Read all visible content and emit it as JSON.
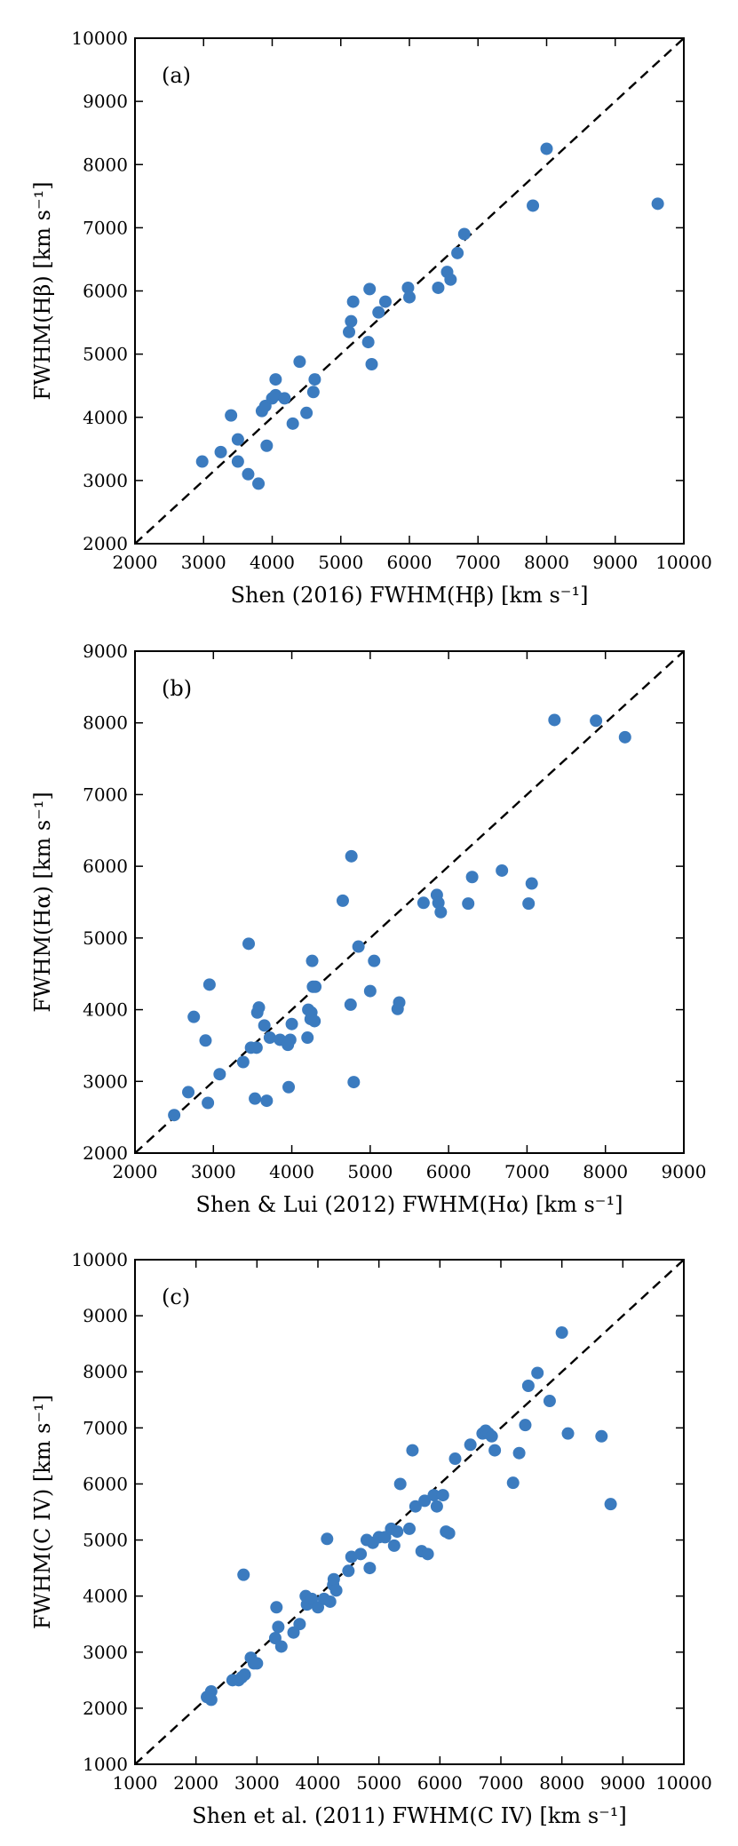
{
  "chart_data": [
    {
      "type": "scatter",
      "panel_label": "(a)",
      "xlabel": "Shen (2016) FWHM(Hβ) [km s⁻¹]",
      "ylabel": "FWHM(Hβ) [km s⁻¹]",
      "xlim": [
        2000,
        10000
      ],
      "ylim": [
        2000,
        10000
      ],
      "xticks": [
        2000,
        3000,
        4000,
        5000,
        6000,
        7000,
        8000,
        9000,
        10000
      ],
      "yticks": [
        2000,
        3000,
        4000,
        5000,
        6000,
        7000,
        8000,
        9000,
        10000
      ],
      "reference_line": "y = x (dashed)",
      "marker_color": "#3b7bbf",
      "x": [
        2980,
        3250,
        3400,
        3500,
        3500,
        3650,
        3800,
        3850,
        3900,
        3920,
        4000,
        4050,
        4050,
        4180,
        4300,
        4400,
        4500,
        4600,
        4620,
        5120,
        5150,
        5180,
        5400,
        5420,
        5450,
        5550,
        5650,
        5980,
        6000,
        6420,
        6550,
        6600,
        6700,
        6800,
        7800,
        8000,
        9620
      ],
      "y": [
        3300,
        3450,
        4030,
        3300,
        3650,
        3100,
        2950,
        4100,
        4180,
        3550,
        4300,
        4350,
        4600,
        4300,
        3900,
        4880,
        4070,
        4400,
        4600,
        5350,
        5520,
        5830,
        5190,
        6030,
        4840,
        5660,
        5830,
        6050,
        5900,
        6050,
        6300,
        6180,
        6600,
        6900,
        7350,
        8250,
        7380
      ]
    },
    {
      "type": "scatter",
      "panel_label": "(b)",
      "xlabel": "Shen & Lui (2012) FWHM(Hα) [km s⁻¹]",
      "ylabel": "FWHM(Hα) [km s⁻¹]",
      "xlim": [
        2000,
        9000
      ],
      "ylim": [
        2000,
        9000
      ],
      "xticks": [
        2000,
        3000,
        4000,
        5000,
        6000,
        7000,
        8000,
        9000
      ],
      "yticks": [
        2000,
        3000,
        4000,
        5000,
        6000,
        7000,
        8000,
        9000
      ],
      "reference_line": "y = x (dashed)",
      "marker_color": "#3b7bbf",
      "x": [
        2500,
        2680,
        2750,
        2900,
        2930,
        2950,
        3080,
        3380,
        3450,
        3480,
        3530,
        3550,
        3560,
        3580,
        3650,
        3680,
        3720,
        3850,
        3950,
        3960,
        3980,
        4000,
        4200,
        4210,
        4240,
        4250,
        4260,
        4270,
        4290,
        4300,
        4650,
        4750,
        4760,
        4790,
        4850,
        5000,
        5050,
        5350,
        5370,
        5680,
        5850,
        5870,
        5900,
        6250,
        6300,
        6680,
        7020,
        7060,
        7350,
        7880,
        8250
      ],
      "y": [
        2530,
        2850,
        3900,
        3570,
        2700,
        4350,
        3100,
        3270,
        4920,
        3470,
        2760,
        3470,
        3960,
        4030,
        3780,
        2730,
        3610,
        3580,
        3510,
        2920,
        3580,
        3800,
        3610,
        4000,
        3870,
        3960,
        4680,
        4320,
        3840,
        4320,
        5520,
        4070,
        6140,
        2990,
        4880,
        4260,
        4680,
        4010,
        4100,
        5490,
        5600,
        5490,
        5360,
        5480,
        5850,
        5940,
        5480,
        5760,
        8040,
        8030,
        7800
      ]
    },
    {
      "type": "scatter",
      "panel_label": "(c)",
      "xlabel": "Shen et al. (2011) FWHM(C IV) [km s⁻¹]",
      "ylabel": "FWHM(C IV) [km s⁻¹]",
      "xlim": [
        1000,
        10000
      ],
      "ylim": [
        1000,
        10000
      ],
      "xticks": [
        1000,
        2000,
        3000,
        4000,
        5000,
        6000,
        7000,
        8000,
        9000,
        10000
      ],
      "yticks": [
        1000,
        2000,
        3000,
        4000,
        5000,
        6000,
        7000,
        8000,
        9000,
        10000
      ],
      "reference_line": "y = x (dashed)",
      "marker_color": "#3b7bbf",
      "x": [
        2180,
        2250,
        2250,
        2600,
        2700,
        2750,
        2780,
        2800,
        2900,
        2950,
        3000,
        3300,
        3320,
        3350,
        3400,
        3600,
        3700,
        3800,
        3820,
        3900,
        4000,
        4100,
        4150,
        4200,
        4250,
        4260,
        4300,
        4500,
        4550,
        4700,
        4800,
        4850,
        4900,
        5000,
        5100,
        5200,
        5250,
        5300,
        5350,
        5500,
        5550,
        5600,
        5700,
        5750,
        5800,
        5900,
        5950,
        6050,
        6100,
        6150,
        6250,
        6500,
        6700,
        6750,
        6800,
        6850,
        6900,
        7200,
        7300,
        7400,
        7450,
        7600,
        7800,
        8000,
        8100,
        8650,
        8800
      ],
      "y": [
        2200,
        2300,
        2150,
        2500,
        2500,
        2550,
        4380,
        2600,
        2900,
        2800,
        2800,
        3250,
        3800,
        3450,
        3100,
        3350,
        3500,
        4000,
        3850,
        3950,
        3800,
        3950,
        5020,
        3900,
        4200,
        4300,
        4100,
        4450,
        4700,
        4750,
        5000,
        4500,
        4950,
        5050,
        5050,
        5200,
        4900,
        5150,
        6000,
        5200,
        6600,
        5600,
        4800,
        5700,
        4750,
        5800,
        5600,
        5800,
        5150,
        5120,
        6450,
        6700,
        6900,
        6950,
        6900,
        6850,
        6600,
        6020,
        6550,
        7050,
        7750,
        7980,
        7480,
        8700,
        6900,
        6850,
        5640
      ]
    }
  ]
}
